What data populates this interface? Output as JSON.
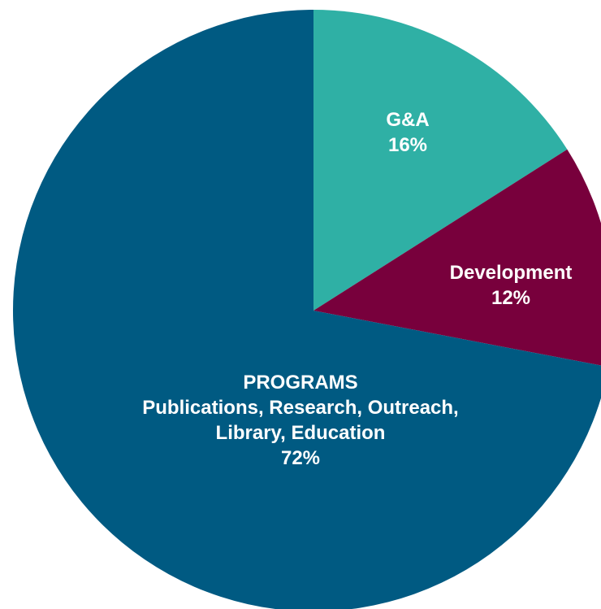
{
  "chart_data": {
    "type": "pie",
    "title": "",
    "start_angle_deg": 0,
    "direction": "clockwise",
    "slices": [
      {
        "label_lines": [
          "G&A"
        ],
        "percent_label": "16%",
        "value": 16,
        "color": "#2fb0a5"
      },
      {
        "label_lines": [
          "Development"
        ],
        "percent_label": "12%",
        "value": 12,
        "color": "#78003c"
      },
      {
        "label_lines": [
          "PROGRAMS",
          "Publications, Research, Outreach,",
          "Library, Education"
        ],
        "percent_label": "72%",
        "value": 72,
        "color": "#005a82"
      }
    ],
    "legend": "none"
  }
}
